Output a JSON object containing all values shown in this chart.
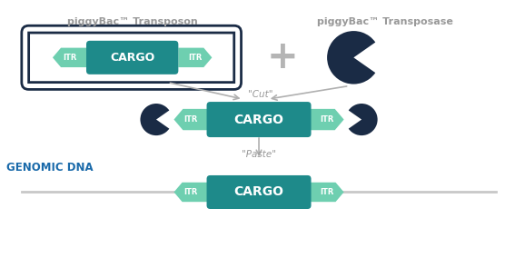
{
  "bg_color": "#ffffff",
  "teal_dark": "#1e8a8a",
  "teal_light": "#6ecfb0",
  "navy_dark": "#1a2b45",
  "gray_arrow": "#b0b0b0",
  "blue_text": "#1a6aaa",
  "gray_text": "#999999",
  "title1": "piggyBac™ Transposon",
  "title2": "piggyBac™ Transposase",
  "genomic_label": "GENOMIC DNA",
  "cargo_label": "CARGO",
  "itr_label": "ITR",
  "cut_label": "\"Cut\"",
  "paste_label": "\"Paste\""
}
